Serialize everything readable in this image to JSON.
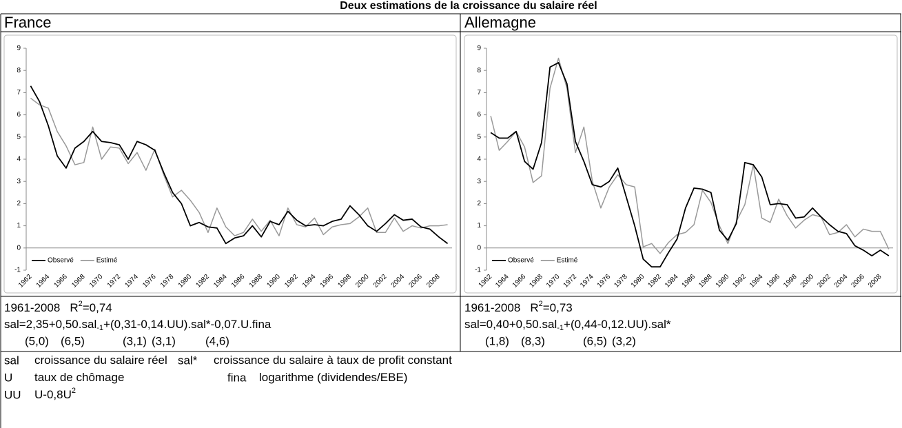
{
  "title": "Deux estimations de la croissance du salaire réel",
  "chart_data": [
    {
      "type": "line",
      "title": "France",
      "categories": [
        "1962",
        null,
        "1964",
        null,
        "1966",
        null,
        "1968",
        null,
        "1970",
        null,
        "1972",
        null,
        "1974",
        null,
        "1976",
        null,
        "1978",
        null,
        "1980",
        null,
        "1982",
        null,
        "1984",
        null,
        "1986",
        null,
        "1988",
        null,
        "1990",
        null,
        "1992",
        null,
        "1994",
        null,
        "1996",
        null,
        "1998",
        null,
        "2000",
        null,
        "2002",
        null,
        "2004",
        null,
        "2006",
        null,
        "2008",
        null
      ],
      "series": [
        {
          "name": "Observé",
          "color": "#000000",
          "values": [
            7.3,
            6.6,
            5.5,
            4.15,
            3.6,
            4.5,
            4.8,
            5.25,
            4.8,
            4.75,
            4.65,
            4.0,
            4.8,
            4.65,
            4.4,
            3.4,
            2.5,
            2.0,
            1.0,
            1.15,
            0.95,
            0.9,
            0.2,
            0.45,
            0.55,
            1.0,
            0.5,
            1.2,
            1.05,
            1.65,
            1.25,
            1.0,
            1.05,
            1.0,
            1.2,
            1.3,
            1.9,
            1.5,
            1.0,
            0.75,
            1.1,
            1.5,
            1.25,
            1.3,
            0.95,
            0.85,
            0.5,
            0.2
          ]
        },
        {
          "name": "Estimé",
          "color": "#999999",
          "values": [
            6.75,
            6.45,
            6.3,
            5.25,
            4.6,
            3.75,
            3.85,
            5.45,
            4.0,
            4.55,
            4.5,
            3.8,
            4.3,
            3.5,
            4.45,
            3.3,
            2.3,
            2.6,
            2.15,
            1.6,
            0.7,
            1.8,
            0.95,
            0.55,
            0.7,
            1.3,
            0.75,
            1.25,
            0.55,
            1.8,
            1.05,
            0.95,
            1.35,
            0.6,
            0.95,
            1.05,
            1.1,
            1.4,
            1.8,
            0.7,
            0.7,
            1.35,
            0.75,
            1.0,
            0.9,
            1.0,
            1.0,
            1.05
          ]
        }
      ],
      "ylim": [
        -1,
        9
      ],
      "yticks": [
        -1,
        0,
        1,
        2,
        3,
        4,
        5,
        6,
        7,
        8,
        9
      ],
      "legend": "lower left"
    },
    {
      "type": "line",
      "title": "Allemagne",
      "categories": [
        "1962",
        null,
        "1964",
        null,
        "1966",
        null,
        "1968",
        null,
        "1970",
        null,
        "1972",
        null,
        "1974",
        null,
        "1976",
        null,
        "1978",
        null,
        "1980",
        null,
        "1982",
        null,
        "1984",
        null,
        "1986",
        null,
        "1988",
        null,
        "1990",
        null,
        "1992",
        null,
        "1994",
        null,
        "1996",
        null,
        "1998",
        null,
        "2000",
        null,
        "2002",
        null,
        "2004",
        null,
        "2006",
        null,
        "2008",
        null
      ],
      "series": [
        {
          "name": "Observé",
          "color": "#000000",
          "values": [
            5.2,
            4.95,
            4.95,
            5.25,
            3.9,
            3.55,
            4.75,
            8.15,
            8.35,
            7.4,
            4.8,
            3.9,
            2.85,
            2.75,
            3.0,
            3.6,
            2.3,
            1.0,
            -0.5,
            -0.85,
            -0.85,
            -0.2,
            0.4,
            1.8,
            2.7,
            2.65,
            2.5,
            0.8,
            0.35,
            1.1,
            3.85,
            3.75,
            3.2,
            1.95,
            2.0,
            1.95,
            1.35,
            1.4,
            1.8,
            1.4,
            1.05,
            0.75,
            0.65,
            0.1,
            -0.1,
            -0.35,
            -0.1,
            -0.35
          ]
        },
        {
          "name": "Estimé",
          "color": "#999999",
          "values": [
            5.95,
            4.4,
            4.8,
            5.25,
            4.55,
            2.95,
            3.25,
            7.2,
            8.55,
            7.2,
            4.3,
            5.45,
            3.0,
            1.8,
            2.75,
            3.3,
            2.85,
            2.75,
            0.05,
            0.2,
            -0.25,
            0.25,
            0.6,
            0.7,
            1.05,
            2.6,
            2.05,
            1.0,
            0.2,
            1.2,
            1.95,
            3.75,
            1.35,
            1.15,
            2.2,
            1.45,
            0.9,
            1.25,
            1.5,
            1.4,
            0.6,
            0.7,
            1.05,
            0.5,
            0.85,
            0.75,
            0.75,
            -0.05
          ]
        }
      ],
      "ylim": [
        -1,
        9
      ],
      "yticks": [
        -1,
        0,
        1,
        2,
        3,
        4,
        5,
        6,
        7,
        8,
        9
      ],
      "legend": "lower left"
    }
  ],
  "estimations": [
    {
      "period": "1961-2008",
      "r2_symbol": "R",
      "r2_exponent": "2",
      "r2_value": "=0,74",
      "formula": [
        "sal=2,35+0,50.sal",
        "-1",
        "+(0,31-0,14.UU).sal*-0,07.U.fina"
      ],
      "t_stats": [
        "(5,0)",
        "(6,5)",
        "(3,1)",
        "(3,1)",
        "(4,6)"
      ]
    },
    {
      "period": "1961-2008",
      "r2_symbol": "R",
      "r2_exponent": "2",
      "r2_value": "=0,73",
      "formula": [
        "sal=0,40+0,50.sal",
        "-1",
        "+(0,44-0,12.UU).sal*"
      ],
      "t_stats": [
        "(1,8)",
        "(8,3)",
        "(6,5)",
        "(3,2)"
      ]
    }
  ],
  "definitions": [
    {
      "term": "sal",
      "definition": "croissance du salaire réel"
    },
    {
      "term": "sal*",
      "definition": "croissance du salaire à taux de profit constant"
    },
    {
      "term": "U",
      "definition": "taux de chômage"
    },
    {
      "term": "fina",
      "definition": "logarithme (dividendes/EBE)"
    },
    {
      "term": "UU",
      "definition": "U-0,8U",
      "exponent": "2"
    }
  ]
}
